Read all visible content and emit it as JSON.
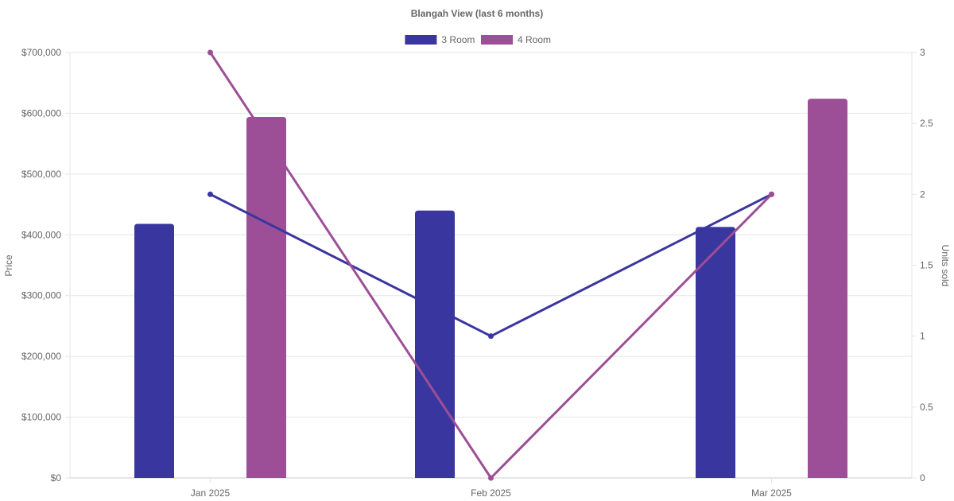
{
  "chart_data": {
    "type": "bar",
    "title": "Blangah View (last 6 months)",
    "categories": [
      "Jan 2025",
      "Feb 2025",
      "Mar 2025"
    ],
    "y_left": {
      "label": "Price",
      "range": [
        0,
        700000
      ],
      "ticks": [
        "$0",
        "$100,000",
        "$200,000",
        "$300,000",
        "$400,000",
        "$500,000",
        "$600,000",
        "$700,000"
      ],
      "tick_values": [
        0,
        100000,
        200000,
        300000,
        400000,
        500000,
        600000,
        700000
      ]
    },
    "y_right": {
      "label": "Units sold",
      "range": [
        0,
        3
      ],
      "ticks": [
        "0",
        "0.5",
        "1",
        "1.5",
        "2",
        "2.5",
        "3"
      ],
      "tick_values": [
        0,
        0.5,
        1,
        1.5,
        2,
        2.5,
        3
      ]
    },
    "grid": true,
    "legend_position": "top",
    "series": [
      {
        "name": "3 Room",
        "color": "#3a36a0",
        "price": [
          418000,
          440000,
          413000
        ],
        "units_sold": [
          2,
          1,
          2
        ]
      },
      {
        "name": "4 Room",
        "color": "#9c4f96",
        "price": [
          594000,
          null,
          624000
        ],
        "units_sold": [
          3,
          0,
          2
        ]
      }
    ]
  }
}
